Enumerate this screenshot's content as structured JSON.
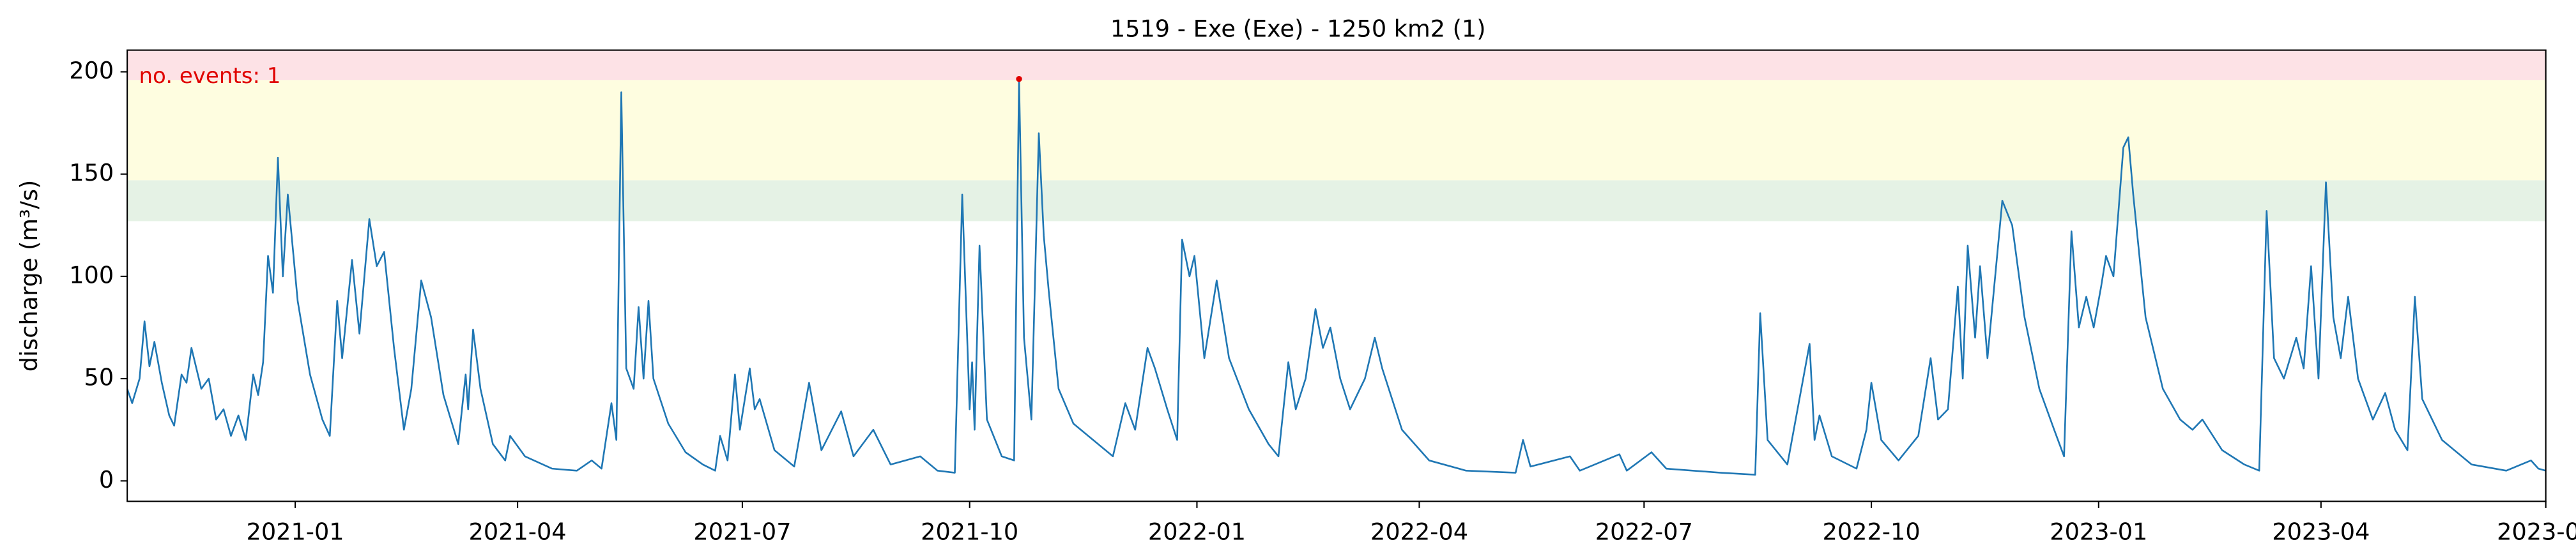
{
  "chart_data": {
    "type": "line",
    "title": "1519 - Exe (Exe) - 1250 km2 (1)",
    "y_label": "discharge (m³/s)",
    "annotation": "no. events: 1",
    "annotation_color": "#e00000",
    "color": "#1f77b4",
    "xlim": [
      "2020-10-25",
      "2023-07-01"
    ],
    "ylim": [
      -10,
      210.6
    ],
    "yticks": [
      0,
      50,
      100,
      150,
      200
    ],
    "xticks": [
      "2021-01",
      "2021-04",
      "2021-07",
      "2021-10",
      "2022-01",
      "2022-04",
      "2022-07",
      "2022-10",
      "2023-01",
      "2023-04",
      "2023-07"
    ],
    "bands": [
      {
        "lower": 127,
        "upper": 147,
        "color": "#e5f2e5"
      },
      {
        "lower": 147,
        "upper": 196,
        "color": "#fefde0"
      },
      {
        "lower": 196,
        "upper": 210.6,
        "color": "#fde2e6"
      }
    ],
    "events": [
      {
        "x": "2021-10-21",
        "value": 196.5,
        "color": "#e00000"
      }
    ],
    "x": [
      "2020-10-25",
      "2020-10-27",
      "2020-10-30",
      "2020-11-01",
      "2020-11-03",
      "2020-11-05",
      "2020-11-08",
      "2020-11-11",
      "2020-11-13",
      "2020-11-16",
      "2020-11-18",
      "2020-11-20",
      "2020-11-24",
      "2020-11-27",
      "2020-11-30",
      "2020-12-03",
      "2020-12-06",
      "2020-12-09",
      "2020-12-12",
      "2020-12-15",
      "2020-12-17",
      "2020-12-19",
      "2020-12-21",
      "2020-12-23",
      "2020-12-25",
      "2020-12-27",
      "2020-12-29",
      "2021-01-02",
      "2021-01-07",
      "2021-01-12",
      "2021-01-15",
      "2021-01-18",
      "2021-01-20",
      "2021-01-24",
      "2021-01-27",
      "2021-01-31",
      "2021-02-03",
      "2021-02-06",
      "2021-02-10",
      "2021-02-14",
      "2021-02-17",
      "2021-02-21",
      "2021-02-25",
      "2021-03-02",
      "2021-03-08",
      "2021-03-11",
      "2021-03-12",
      "2021-03-14",
      "2021-03-17",
      "2021-03-22",
      "2021-03-27",
      "2021-03-29",
      "2021-04-04",
      "2021-04-15",
      "2021-04-25",
      "2021-05-01",
      "2021-05-05",
      "2021-05-09",
      "2021-05-11",
      "2021-05-13",
      "2021-05-15",
      "2021-05-18",
      "2021-05-20",
      "2021-05-22",
      "2021-05-24",
      "2021-05-26",
      "2021-06-01",
      "2021-06-08",
      "2021-06-15",
      "2021-06-20",
      "2021-06-22",
      "2021-06-25",
      "2021-06-28",
      "2021-06-30",
      "2021-07-04",
      "2021-07-06",
      "2021-07-08",
      "2021-07-14",
      "2021-07-22",
      "2021-07-28",
      "2021-08-02",
      "2021-08-10",
      "2021-08-15",
      "2021-08-23",
      "2021-08-30",
      "2021-09-11",
      "2021-09-18",
      "2021-09-25",
      "2021-09-28",
      "2021-10-01",
      "2021-10-02",
      "2021-10-03",
      "2021-10-05",
      "2021-10-08",
      "2021-10-14",
      "2021-10-19",
      "2021-10-21",
      "2021-10-23",
      "2021-10-26",
      "2021-10-29",
      "2021-10-31",
      "2021-11-02",
      "2021-11-06",
      "2021-11-12",
      "2021-11-20",
      "2021-11-28",
      "2021-12-03",
      "2021-12-07",
      "2021-12-12",
      "2021-12-15",
      "2021-12-20",
      "2021-12-24",
      "2021-12-26",
      "2021-12-29",
      "2021-12-31",
      "2022-01-04",
      "2022-01-09",
      "2022-01-14",
      "2022-01-22",
      "2022-01-30",
      "2022-02-03",
      "2022-02-07",
      "2022-02-10",
      "2022-02-14",
      "2022-02-18",
      "2022-02-21",
      "2022-02-24",
      "2022-02-28",
      "2022-03-04",
      "2022-03-10",
      "2022-03-14",
      "2022-03-17",
      "2022-03-25",
      "2022-04-05",
      "2022-04-20",
      "2022-05-10",
      "2022-05-13",
      "2022-05-16",
      "2022-06-01",
      "2022-06-05",
      "2022-06-21",
      "2022-06-24",
      "2022-07-04",
      "2022-07-10",
      "2022-08-01",
      "2022-08-15",
      "2022-08-17",
      "2022-08-20",
      "2022-08-28",
      "2022-09-06",
      "2022-09-08",
      "2022-09-10",
      "2022-09-15",
      "2022-09-25",
      "2022-09-29",
      "2022-10-01",
      "2022-10-05",
      "2022-10-12",
      "2022-10-20",
      "2022-10-25",
      "2022-10-28",
      "2022-11-01",
      "2022-11-05",
      "2022-11-07",
      "2022-11-09",
      "2022-11-12",
      "2022-11-14",
      "2022-11-17",
      "2022-11-23",
      "2022-11-27",
      "2022-12-02",
      "2022-12-08",
      "2022-12-14",
      "2022-12-18",
      "2022-12-21",
      "2022-12-24",
      "2022-12-27",
      "2022-12-30",
      "2023-01-02",
      "2023-01-04",
      "2023-01-07",
      "2023-01-11",
      "2023-01-13",
      "2023-01-15",
      "2023-01-20",
      "2023-01-27",
      "2023-02-03",
      "2023-02-08",
      "2023-02-12",
      "2023-02-20",
      "2023-03-01",
      "2023-03-07",
      "2023-03-10",
      "2023-03-13",
      "2023-03-17",
      "2023-03-22",
      "2023-03-25",
      "2023-03-28",
      "2023-03-31",
      "2023-04-03",
      "2023-04-06",
      "2023-04-09",
      "2023-04-12",
      "2023-04-16",
      "2023-04-22",
      "2023-04-27",
      "2023-05-01",
      "2023-05-06",
      "2023-05-09",
      "2023-05-12",
      "2023-05-20",
      "2023-06-01",
      "2023-06-15",
      "2023-06-25",
      "2023-06-28",
      "2023-07-01"
    ],
    "values": [
      45,
      38,
      50,
      78,
      56,
      68,
      48,
      32,
      27,
      52,
      48,
      65,
      45,
      50,
      30,
      35,
      22,
      32,
      20,
      52,
      42,
      58,
      110,
      92,
      158,
      100,
      140,
      88,
      52,
      30,
      22,
      88,
      60,
      108,
      72,
      128,
      105,
      112,
      65,
      25,
      45,
      98,
      80,
      42,
      18,
      52,
      35,
      74,
      45,
      18,
      10,
      22,
      12,
      6,
      5,
      10,
      6,
      38,
      20,
      190,
      55,
      45,
      85,
      50,
      88,
      50,
      28,
      14,
      8,
      5,
      22,
      10,
      52,
      25,
      55,
      35,
      40,
      15,
      7,
      48,
      15,
      34,
      12,
      25,
      8,
      12,
      5,
      4,
      140,
      35,
      58,
      25,
      115,
      30,
      12,
      10,
      196.5,
      70,
      30,
      170,
      120,
      93,
      45,
      28,
      20,
      12,
      38,
      25,
      65,
      55,
      35,
      20,
      118,
      100,
      110,
      60,
      98,
      60,
      35,
      18,
      12,
      58,
      35,
      50,
      84,
      65,
      75,
      50,
      35,
      50,
      70,
      55,
      25,
      10,
      5,
      4,
      20,
      7,
      12,
      5,
      13,
      5,
      14,
      6,
      4,
      3,
      82,
      20,
      8,
      67,
      20,
      32,
      12,
      6,
      25,
      48,
      20,
      10,
      22,
      60,
      30,
      35,
      95,
      50,
      115,
      70,
      105,
      60,
      137,
      125,
      80,
      45,
      25,
      12,
      122,
      75,
      90,
      75,
      95,
      110,
      100,
      163,
      168,
      140,
      80,
      45,
      30,
      25,
      30,
      15,
      8,
      5,
      132,
      60,
      50,
      70,
      55,
      105,
      50,
      146,
      80,
      60,
      90,
      50,
      30,
      43,
      25,
      15,
      90,
      40,
      20,
      8,
      5,
      10,
      6,
      5
    ]
  }
}
